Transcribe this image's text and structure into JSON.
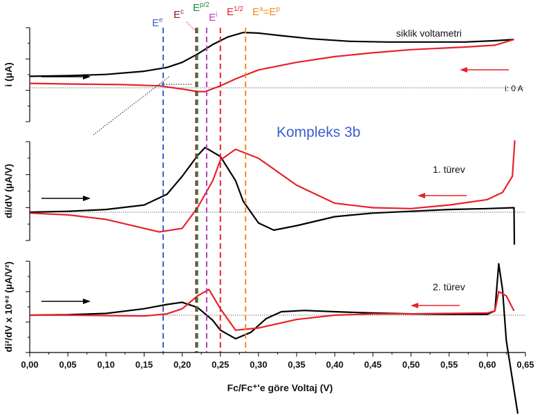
{
  "chart_data": {
    "type": "line",
    "title": "Kompleks 3b",
    "xlabel": "Fc/Fc⁺'e göre Voltaj (V)",
    "xlim": [
      0.0,
      0.65
    ],
    "xticks": [
      "0,00",
      "0,05",
      "0,10",
      "0,15",
      "0,20",
      "0,25",
      "0,30",
      "0,35",
      "0,40",
      "0,45",
      "0,50",
      "0,55",
      "0,60",
      "0,65"
    ],
    "colors": {
      "forward": "#000000",
      "reverse": "#e8202a",
      "Ee": "#3a5fcd",
      "Ec": "#8b1a1a",
      "Ep2": "#1a8a3a",
      "Ei": "#b040b0",
      "E12": "#e8202a",
      "EaEp": "#f08c1e"
    },
    "panels": [
      {
        "ylabel": "i (µA)",
        "label": "siklik voltametri",
        "zero_label": "i: 0 A",
        "series": [
          {
            "direction": "forward",
            "color": "#000000",
            "points": [
              [
                0.0,
                0.18
              ],
              [
                0.05,
                0.19
              ],
              [
                0.1,
                0.21
              ],
              [
                0.15,
                0.26
              ],
              [
                0.18,
                0.32
              ],
              [
                0.2,
                0.4
              ],
              [
                0.22,
                0.53
              ],
              [
                0.24,
                0.68
              ],
              [
                0.26,
                0.8
              ],
              [
                0.28,
                0.87
              ],
              [
                0.3,
                0.86
              ],
              [
                0.33,
                0.82
              ],
              [
                0.37,
                0.77
              ],
              [
                0.42,
                0.73
              ],
              [
                0.47,
                0.72
              ],
              [
                0.52,
                0.72
              ],
              [
                0.57,
                0.72
              ],
              [
                0.61,
                0.74
              ],
              [
                0.635,
                0.76
              ]
            ]
          },
          {
            "direction": "reverse",
            "color": "#e8202a",
            "points": [
              [
                0.635,
                0.76
              ],
              [
                0.61,
                0.67
              ],
              [
                0.57,
                0.64
              ],
              [
                0.5,
                0.6
              ],
              [
                0.45,
                0.55
              ],
              [
                0.4,
                0.49
              ],
              [
                0.35,
                0.4
              ],
              [
                0.3,
                0.28
              ],
              [
                0.27,
                0.14
              ],
              [
                0.25,
                0.03
              ],
              [
                0.23,
                -0.06
              ],
              [
                0.22,
                -0.06
              ],
              [
                0.2,
                -0.02
              ],
              [
                0.17,
                0.03
              ],
              [
                0.12,
                0.05
              ],
              [
                0.05,
                0.06
              ],
              [
                0.0,
                0.07
              ]
            ]
          }
        ]
      },
      {
        "ylabel": "di/dV (µA/V)",
        "label": "1. türev",
        "series": [
          {
            "direction": "forward",
            "color": "#000000",
            "points": [
              [
                0.0,
                0.0
              ],
              [
                0.05,
                0.01
              ],
              [
                0.1,
                0.03
              ],
              [
                0.15,
                0.08
              ],
              [
                0.18,
                0.2
              ],
              [
                0.2,
                0.4
              ],
              [
                0.22,
                0.63
              ],
              [
                0.23,
                0.72
              ],
              [
                0.25,
                0.62
              ],
              [
                0.27,
                0.35
              ],
              [
                0.28,
                0.12
              ],
              [
                0.3,
                -0.12
              ],
              [
                0.32,
                -0.2
              ],
              [
                0.35,
                -0.15
              ],
              [
                0.4,
                -0.05
              ],
              [
                0.45,
                -0.01
              ],
              [
                0.5,
                0.01
              ],
              [
                0.55,
                0.03
              ],
              [
                0.6,
                0.04
              ],
              [
                0.635,
                0.05
              ],
              [
                0.636,
                -0.8
              ]
            ]
          },
          {
            "direction": "reverse",
            "color": "#e8202a",
            "points": [
              [
                0.636,
                0.8
              ],
              [
                0.633,
                0.4
              ],
              [
                0.62,
                0.22
              ],
              [
                0.6,
                0.14
              ],
              [
                0.55,
                0.08
              ],
              [
                0.5,
                0.04
              ],
              [
                0.45,
                0.05
              ],
              [
                0.4,
                0.1
              ],
              [
                0.35,
                0.3
              ],
              [
                0.3,
                0.6
              ],
              [
                0.27,
                0.7
              ],
              [
                0.25,
                0.58
              ],
              [
                0.24,
                0.35
              ],
              [
                0.22,
                0.05
              ],
              [
                0.2,
                -0.18
              ],
              [
                0.17,
                -0.22
              ],
              [
                0.14,
                -0.16
              ],
              [
                0.1,
                -0.08
              ],
              [
                0.05,
                -0.03
              ],
              [
                0.0,
                -0.01
              ]
            ]
          }
        ]
      },
      {
        "ylabel": "di²/dV x 10⁺² (µA/V²)",
        "label": "2. türev",
        "series": [
          {
            "direction": "forward",
            "color": "#000000",
            "points": [
              [
                0.0,
                0.0
              ],
              [
                0.05,
                0.01
              ],
              [
                0.1,
                0.04
              ],
              [
                0.15,
                0.15
              ],
              [
                0.18,
                0.25
              ],
              [
                0.2,
                0.3
              ],
              [
                0.22,
                0.18
              ],
              [
                0.24,
                -0.12
              ],
              [
                0.25,
                -0.35
              ],
              [
                0.27,
                -0.55
              ],
              [
                0.29,
                -0.4
              ],
              [
                0.31,
                -0.08
              ],
              [
                0.33,
                0.08
              ],
              [
                0.36,
                0.11
              ],
              [
                0.4,
                0.08
              ],
              [
                0.45,
                0.05
              ],
              [
                0.5,
                0.03
              ],
              [
                0.55,
                0.02
              ],
              [
                0.6,
                0.02
              ],
              [
                0.61,
                0.1
              ],
              [
                0.615,
                1.2
              ],
              [
                0.62,
                0.6
              ],
              [
                0.625,
                -0.6
              ],
              [
                0.64,
                -2.3
              ]
            ]
          },
          {
            "direction": "reverse",
            "color": "#e8202a",
            "points": [
              [
                0.635,
                0.1
              ],
              [
                0.625,
                0.45
              ],
              [
                0.615,
                0.55
              ],
              [
                0.61,
                0.1
              ],
              [
                0.6,
                0.05
              ],
              [
                0.55,
                0.04
              ],
              [
                0.5,
                0.03
              ],
              [
                0.45,
                0.03
              ],
              [
                0.4,
                0.0
              ],
              [
                0.35,
                -0.1
              ],
              [
                0.3,
                -0.3
              ],
              [
                0.27,
                -0.35
              ],
              [
                0.25,
                0.15
              ],
              [
                0.235,
                0.6
              ],
              [
                0.22,
                0.45
              ],
              [
                0.2,
                0.15
              ],
              [
                0.18,
                0.03
              ],
              [
                0.15,
                -0.02
              ],
              [
                0.1,
                -0.01
              ],
              [
                0.05,
                0.0
              ],
              [
                0.0,
                0.0
              ]
            ]
          }
        ]
      }
    ],
    "markers": [
      {
        "name": "Ee",
        "base": "E",
        "sup": "e",
        "x": 0.175,
        "color": "#3a5fcd"
      },
      {
        "name": "Ec",
        "base": "E",
        "sup": "c",
        "x": 0.218,
        "color": "#8b1a1a"
      },
      {
        "name": "Ep/2",
        "base": "E",
        "sup": "p/2",
        "x": 0.22,
        "color": "#1a8a3a"
      },
      {
        "name": "Ei",
        "base": "E",
        "sup": "i",
        "x": 0.232,
        "color": "#b040b0"
      },
      {
        "name": "E1/2",
        "base": "E",
        "sup": "1/2",
        "x": 0.25,
        "color": "#e8202a"
      },
      {
        "name": "Ea=Ep",
        "base": "E",
        "sup": "a",
        "mid": "=E",
        "sup2": "p",
        "x": 0.283,
        "color": "#f08c1e"
      }
    ]
  }
}
